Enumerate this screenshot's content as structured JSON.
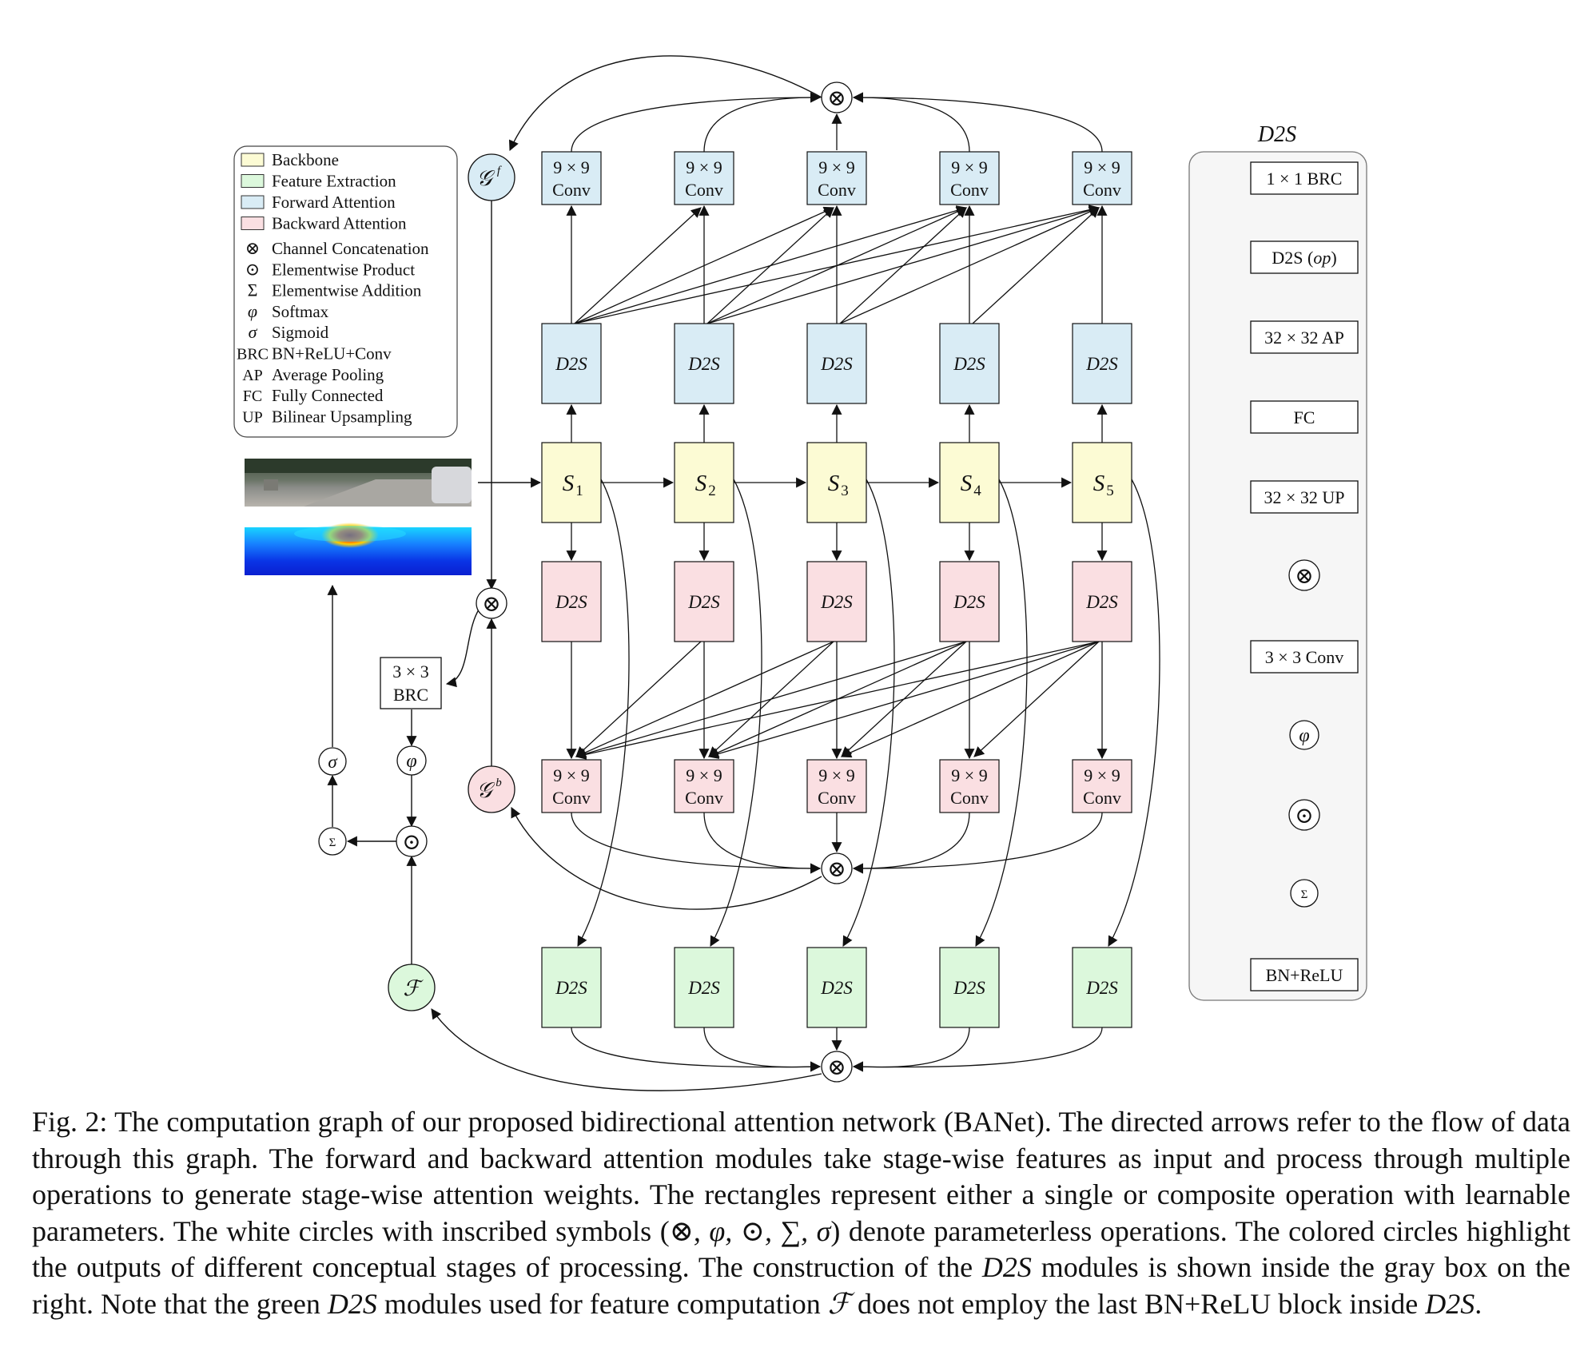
{
  "legend": {
    "color_items": [
      {
        "label": "Backbone",
        "color": "#fcfbd4"
      },
      {
        "label": "Feature Extraction",
        "color": "#dcf8dc"
      },
      {
        "label": "Forward Attention",
        "color": "#d9ecf5"
      },
      {
        "label": "Backward Attention",
        "color": "#fadfe2"
      }
    ],
    "symbol_items": [
      {
        "symbol": "⊗",
        "label": "Channel Concatenation"
      },
      {
        "symbol": "⊙",
        "label": "Elementwise Product"
      },
      {
        "symbol": "Σ",
        "label": "Elementwise Addition"
      },
      {
        "symbol": "φ",
        "label": "Softmax"
      },
      {
        "symbol": "σ",
        "label": "Sigmoid"
      },
      {
        "symbol": "BRC",
        "label": "BN+ReLU+Conv"
      },
      {
        "symbol": "AP",
        "label": "Average Pooling"
      },
      {
        "symbol": "FC",
        "label": "Fully Connected"
      },
      {
        "symbol": "UP",
        "label": "Bilinear Upsampling"
      }
    ]
  },
  "colors": {
    "backbone": "#fcfbd4",
    "feature": "#dcf8dc",
    "forward": "#d9ecf5",
    "backward": "#fadfe2",
    "panel": "#f6f6f6"
  },
  "labels": {
    "conv_top": "9 × 9",
    "conv_bottom": "Conv",
    "d2s": "D2S",
    "stage_letter": "S",
    "stage_numbers": [
      "1",
      "2",
      "3",
      "4",
      "5"
    ],
    "concat": "⊗",
    "product": "⊙",
    "sum": "Σ",
    "softmax": "φ",
    "sigmoid": "σ",
    "brc_top": "3 × 3",
    "brc_bottom": "BRC",
    "g_f": "𝒢",
    "g_f_sup": "f",
    "g_b": "𝒢",
    "g_b_sup": "b",
    "feature": "ℱ"
  },
  "d2s_panel": {
    "title": "D2S",
    "blocks": [
      "1 × 1 BRC",
      "D2S (",
      "op",
      ")",
      "32 × 32 AP",
      "FC",
      "32 × 32 UP",
      "3 × 3 Conv",
      "BN+ReLU"
    ]
  },
  "caption": {
    "s1": "Fig. 2: The computation graph of our proposed bidirectional attention network (BANet). The directed arrows refer to the flow of data through this graph. The forward and backward attention modules take stage-wise features as input and process through multiple operations to generate stage-wise attention weights. The rectangles represent either a single or composite operation with learnable parameters. The white circles with inscribed symbols (",
    "syms": "⊗, φ, ⊙, ∑, σ",
    "s2": ") denote parameterless operations. The colored circles highlight the outputs of different conceptual stages of processing. The construction of the ",
    "d2s_a": "D2S",
    "s3": " modules is shown inside the gray box on the right. Note that the green ",
    "d2s_b": "D2S",
    "s4": " modules used for feature computation ",
    "f": "ℱ",
    "s5": " does not employ the last BN+ReLU block inside ",
    "d2s_c": "D2S",
    "s6": "."
  }
}
